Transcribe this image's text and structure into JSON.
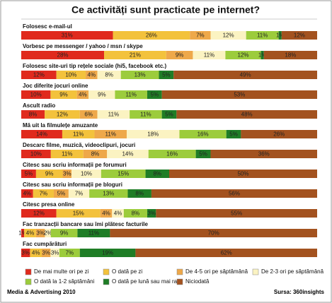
{
  "chart_data": {
    "type": "stacked_bar_100",
    "title": "Ce activități sunt practicate pe internet?",
    "categories": [
      "Folosesc e-mail-ul",
      "Vorbesc pe messenger / yahoo / msn / skype",
      "Folosesc site-uri tip rețele sociale (hi5, facebook etc.)",
      "Joc diferite jocuri online",
      "Ascult radio",
      "Mă uit la filmulețe amuzante",
      "Descarc filme, muzică, videoclipuri, jocuri",
      "Citesc sau scriu informații pe forumuri",
      "Citesc sau scriu informații pe bloguri",
      "Citesc presa online",
      "Fac tranzacții bancare sau îmi plătesc facturile",
      "Fac cumpărături"
    ],
    "series": [
      {
        "name": "De mai multe ori pe zi",
        "color": "#e02a1d",
        "values": [
          31,
          28,
          12,
          10,
          8,
          14,
          10,
          5,
          4,
          12,
          1,
          3
        ],
        "value_labels": [
          "31%",
          "28%",
          "12%",
          "10%",
          "8%",
          "14%",
          "10%",
          "5%",
          "4%",
          "12%",
          "1%",
          "3%"
        ]
      },
      {
        "name": "O dată pe zi",
        "color": "#f3c23c",
        "values": [
          26,
          21,
          10,
          9,
          12,
          11,
          11,
          9,
          7,
          15,
          4,
          4
        ],
        "value_labels": [
          "26%",
          "21%",
          "10%",
          "9%",
          "12%",
          "11%",
          "11%",
          "9%",
          "7%",
          "15%",
          "4%",
          "4%"
        ]
      },
      {
        "name": "De 4-5 ori pe săptămână",
        "color": "#eea84a",
        "values": [
          7,
          9,
          4,
          4,
          6,
          11,
          8,
          3,
          5,
          4,
          3,
          3
        ],
        "value_labels": [
          "7%",
          "9%",
          "4%",
          "4%",
          "6%",
          "11%",
          "8%",
          "3%",
          "5%",
          "4%",
          "3%",
          "3%"
        ]
      },
      {
        "name": "De 2-3 ori pe săptămână",
        "color": "#fbf3c2",
        "values": [
          12,
          11,
          8,
          9,
          11,
          18,
          14,
          10,
          7,
          4,
          2,
          3
        ],
        "value_labels": [
          "12%",
          "11%",
          "8%",
          "9%",
          "11%",
          "18%",
          "14%",
          "10%",
          "7%",
          "4%",
          "2%",
          "3%"
        ]
      },
      {
        "name": "O dată la 1-2 săptămâni",
        "color": "#9ccc3c",
        "values": [
          11,
          12,
          13,
          11,
          11,
          16,
          16,
          15,
          13,
          8,
          9,
          7
        ],
        "value_labels": [
          "11%",
          "12%",
          "13%",
          "11%",
          "11%",
          "16%",
          "16%",
          "15%",
          "13%",
          "8%",
          "9%",
          "7%"
        ]
      },
      {
        "name": "O dată pe lună sau mai rar",
        "color": "#1f7d26",
        "values": [
          1,
          1,
          5,
          5,
          5,
          5,
          5,
          8,
          8,
          3,
          11,
          19
        ],
        "value_labels": [
          "1%",
          "1%",
          "5%",
          "5%",
          "5%",
          "5%",
          "5%",
          "8%",
          "8%",
          "3%",
          "11%",
          "19%"
        ]
      },
      {
        "name": "Niciodată",
        "color": "#a3521f",
        "values": [
          12,
          18,
          49,
          53,
          48,
          26,
          36,
          50,
          56,
          55,
          70,
          62
        ],
        "value_labels": [
          "12%",
          "18%",
          "49%",
          "53%",
          "48%",
          "26%",
          "36%",
          "50%",
          "56%",
          "55%",
          "70%",
          "62%"
        ]
      }
    ],
    "footer_left": "Media & Advertising 2010",
    "footer_right": "Sursa: 360insights"
  }
}
